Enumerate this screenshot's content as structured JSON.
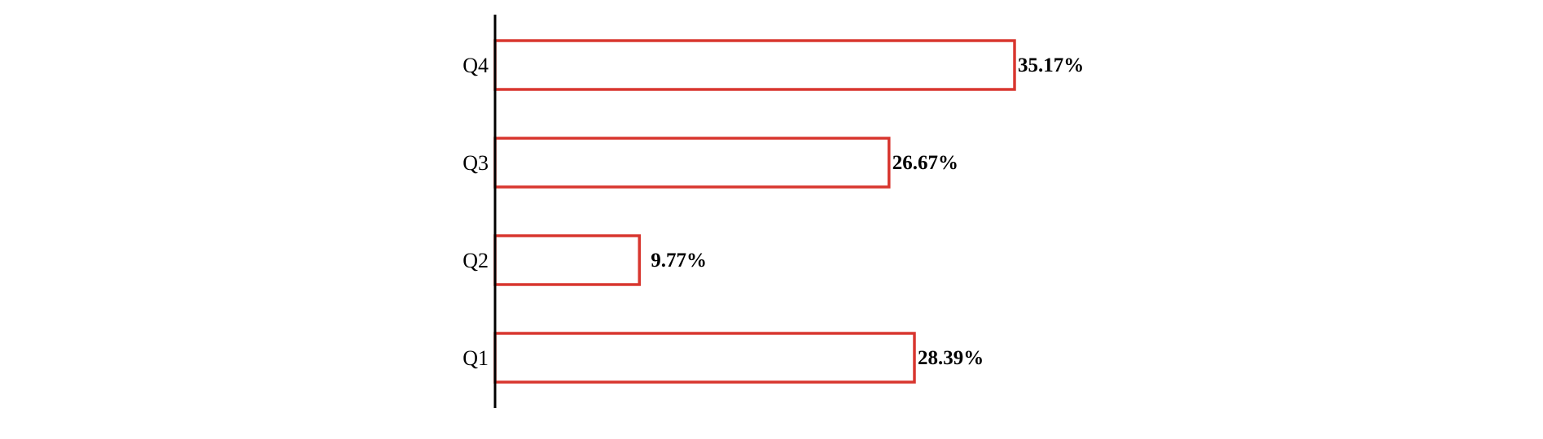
{
  "chart_data": {
    "type": "bar",
    "orientation": "horizontal",
    "categories": [
      "Q1",
      "Q2",
      "Q3",
      "Q4"
    ],
    "values": [
      28.39,
      9.77,
      26.67,
      35.17
    ],
    "value_labels": [
      "28.39%",
      "9.77%",
      "26.67%",
      "35.17%"
    ],
    "title": "",
    "xlabel": "",
    "ylabel": "",
    "xlim": [
      0,
      35.17
    ],
    "grid": false,
    "legend": "none",
    "bar_fill": "#ffffff",
    "bar_edge": "#d8362f",
    "axis_color": "#000000"
  }
}
